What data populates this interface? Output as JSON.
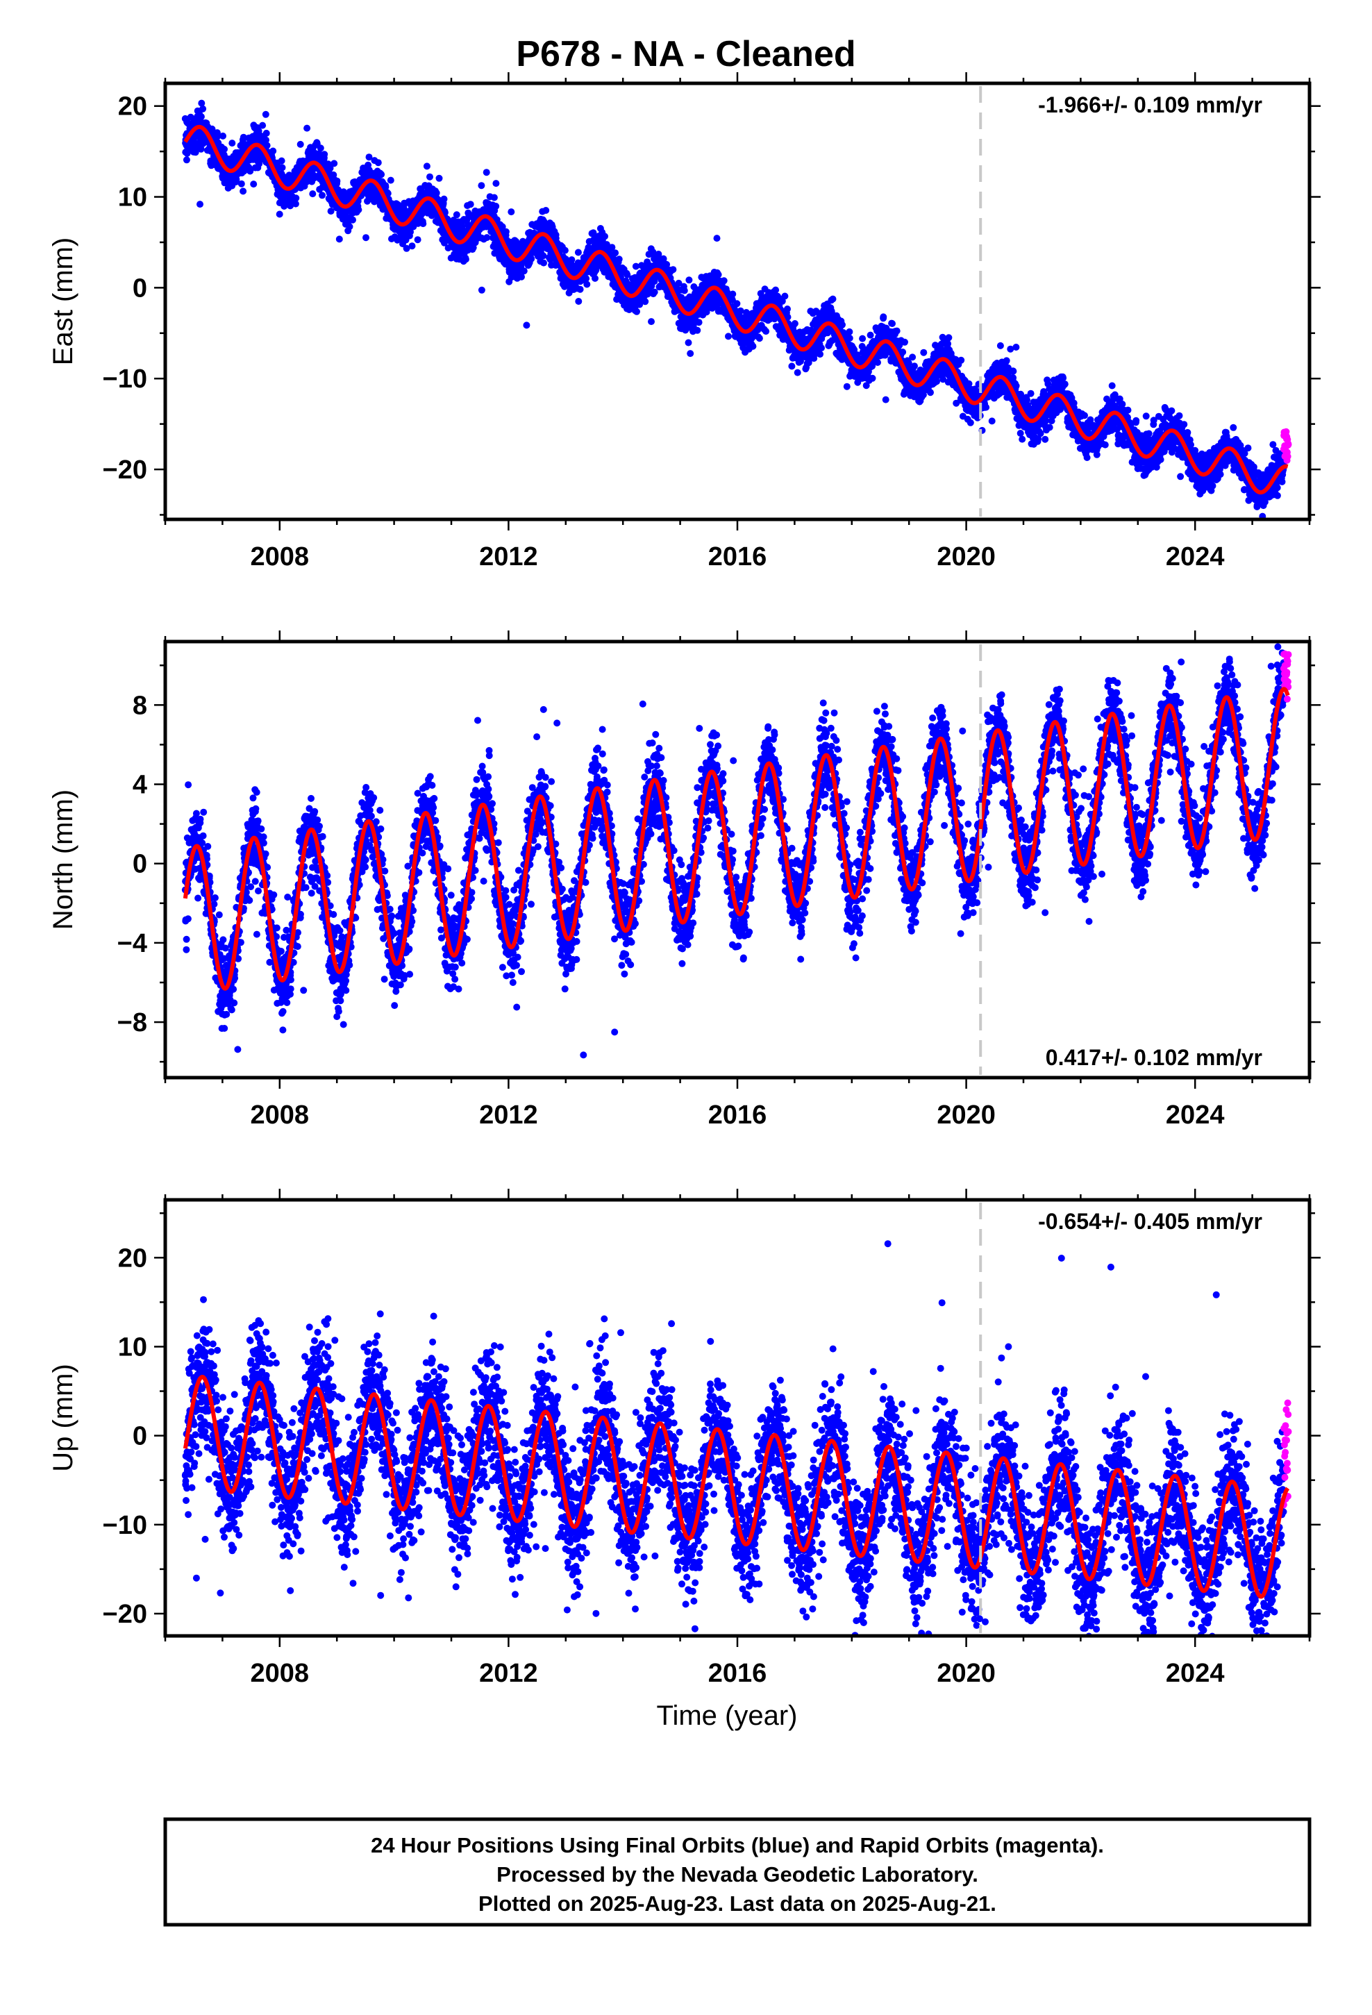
{
  "title": "P678  - NA - Cleaned",
  "x_axis_label": "Time (year)",
  "footer": {
    "line1": "24 Hour Positions Using Final Orbits (blue) and Rapid Orbits (magenta).",
    "line2": "Processed by the Nevada Geodetic Laboratory.",
    "line3": "Plotted on 2025-Aug-23. Last data on 2025-Aug-21."
  },
  "colors": {
    "final_orbits": "#0000ff",
    "rapid_orbits": "#ff00ff",
    "model_fit": "#ff0000",
    "event_line": "#c8c8c8"
  },
  "chart_data": [
    {
      "type": "scatter",
      "component": "east",
      "ylabel": "East (mm)",
      "rate_label": "-1.966+/- 0.109 mm/yr",
      "rate_label_position": "top-right",
      "xlim": [
        2006.0,
        2026.0
      ],
      "ylim": [
        -25.5,
        22.5
      ],
      "x_ticks": [
        2008,
        2012,
        2016,
        2020,
        2024
      ],
      "y_ticks": [
        20,
        10,
        0,
        -10,
        -20
      ],
      "x_minor_step": 1,
      "y_minor_step": 5,
      "event_line_x": 2020.25,
      "grid": false,
      "fit": {
        "start": 2006.35,
        "end": 2025.62,
        "value_at_start": 16.3,
        "trend_mm_per_yr": -1.966,
        "annual_amplitude_mm": 1.9,
        "annual_peak_year_fraction": 0.62
      },
      "series": [
        {
          "name": "Final Orbits",
          "color": "#0000ff",
          "points_description": "daily positions",
          "x_start": 2006.35,
          "x_end": 2025.55,
          "noise_mm": 1.0
        },
        {
          "name": "Rapid Orbits",
          "color": "#ff00ff",
          "x_start": 2025.55,
          "x_end": 2025.63,
          "y_range": [
            -19.5,
            -15.3
          ]
        }
      ]
    },
    {
      "type": "scatter",
      "component": "north",
      "ylabel": "North (mm)",
      "rate_label": "0.417+/- 0.102 mm/yr",
      "rate_label_position": "bottom-right",
      "xlim": [
        2006.0,
        2026.0
      ],
      "ylim": [
        -10.8,
        11.2
      ],
      "x_ticks": [
        2008,
        2012,
        2016,
        2020,
        2024
      ],
      "y_ticks": [
        8,
        4,
        0,
        -4,
        -8
      ],
      "x_minor_step": 1,
      "y_minor_step": 2,
      "event_line_x": 2020.25,
      "grid": false,
      "fit": {
        "start": 2006.35,
        "end": 2025.62,
        "value_at_start": -2.9,
        "trend_mm_per_yr": 0.417,
        "annual_amplitude_mm": 3.7,
        "annual_peak_year_fraction": 0.55
      },
      "series": [
        {
          "name": "Final Orbits",
          "color": "#0000ff",
          "points_description": "daily positions",
          "x_start": 2006.35,
          "x_end": 2025.55,
          "noise_mm": 1.0
        },
        {
          "name": "Rapid Orbits",
          "color": "#ff00ff",
          "x_start": 2025.55,
          "x_end": 2025.63,
          "y_range": [
            8.2,
            10.6
          ]
        }
      ]
    },
    {
      "type": "scatter",
      "component": "up",
      "ylabel": "Up (mm)",
      "rate_label": "-0.654+/- 0.405 mm/yr",
      "rate_label_position": "top-right",
      "xlim": [
        2006.0,
        2026.0
      ],
      "ylim": [
        -22.5,
        26.5
      ],
      "x_ticks": [
        2008,
        2012,
        2016,
        2020,
        2024
      ],
      "y_ticks": [
        20,
        10,
        0,
        -10,
        -20
      ],
      "x_minor_step": 1,
      "y_minor_step": 5,
      "event_line_x": 2020.25,
      "grid": false,
      "fit": {
        "start": 2006.35,
        "end": 2025.62,
        "value_at_start": 0.5,
        "trend_mm_per_yr": -0.654,
        "annual_amplitude_mm": 6.3,
        "annual_peak_year_fraction": 0.65
      },
      "series": [
        {
          "name": "Final Orbits",
          "color": "#0000ff",
          "points_description": "daily positions",
          "x_start": 2006.35,
          "x_end": 2025.55,
          "noise_mm": 3.6
        },
        {
          "name": "Rapid Orbits",
          "color": "#ff00ff",
          "x_start": 2025.55,
          "x_end": 2025.63,
          "y_range": [
            -7.8,
            3.9
          ]
        }
      ]
    }
  ]
}
